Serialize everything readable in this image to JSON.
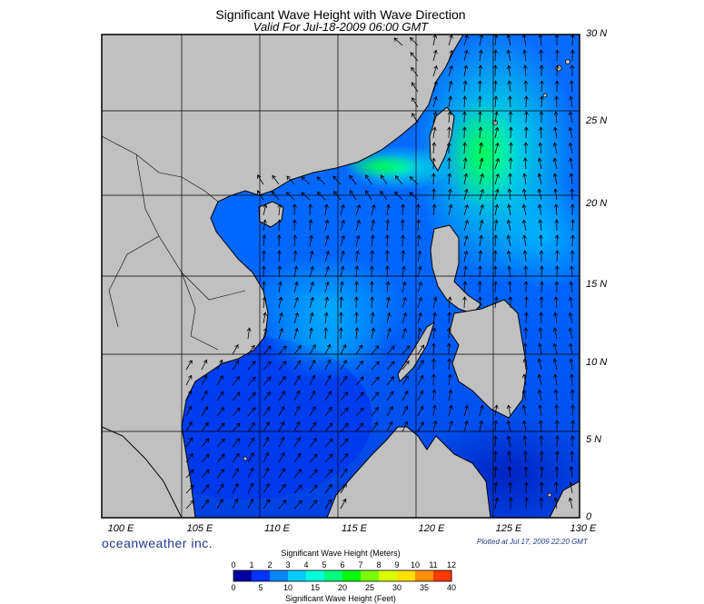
{
  "title": "Significant Wave Height with Wave Direction",
  "subtitle": "Valid For Jul-18-2009 06:00 GMT",
  "lat_labels": [
    "30 N",
    "25 N",
    "20 N",
    "15 N",
    "10 N",
    "5 N",
    "0"
  ],
  "lon_labels": [
    "100 E",
    "105 E",
    "110 E",
    "115 E",
    "120 E",
    "125 E",
    "130 E"
  ],
  "brand": "oceanweather inc.",
  "plotted_note": "Plotted at Jul 17, 2009 22:20 GMT",
  "colorbar": {
    "meters_title": "Significant Wave Height (Meters)",
    "feet_title": "Significant Wave Height (Feet)",
    "meters_ticks": [
      "0",
      "1",
      "2",
      "3",
      "4",
      "5",
      "6",
      "7",
      "8",
      "9",
      "10",
      "11",
      "12"
    ],
    "feet_ticks": [
      "0",
      "5",
      "10",
      "15",
      "20",
      "25",
      "30",
      "35",
      "40"
    ],
    "colors": [
      "#0000a0",
      "#0033ff",
      "#0088ff",
      "#00ccff",
      "#00ffd8",
      "#00ff7a",
      "#00ff00",
      "#7aff00",
      "#d8ff00",
      "#ffe000",
      "#ff9000",
      "#ff3800"
    ]
  },
  "colors": {
    "land": "#c0c0c0",
    "coast": "#000000",
    "grid": "#000000"
  }
}
